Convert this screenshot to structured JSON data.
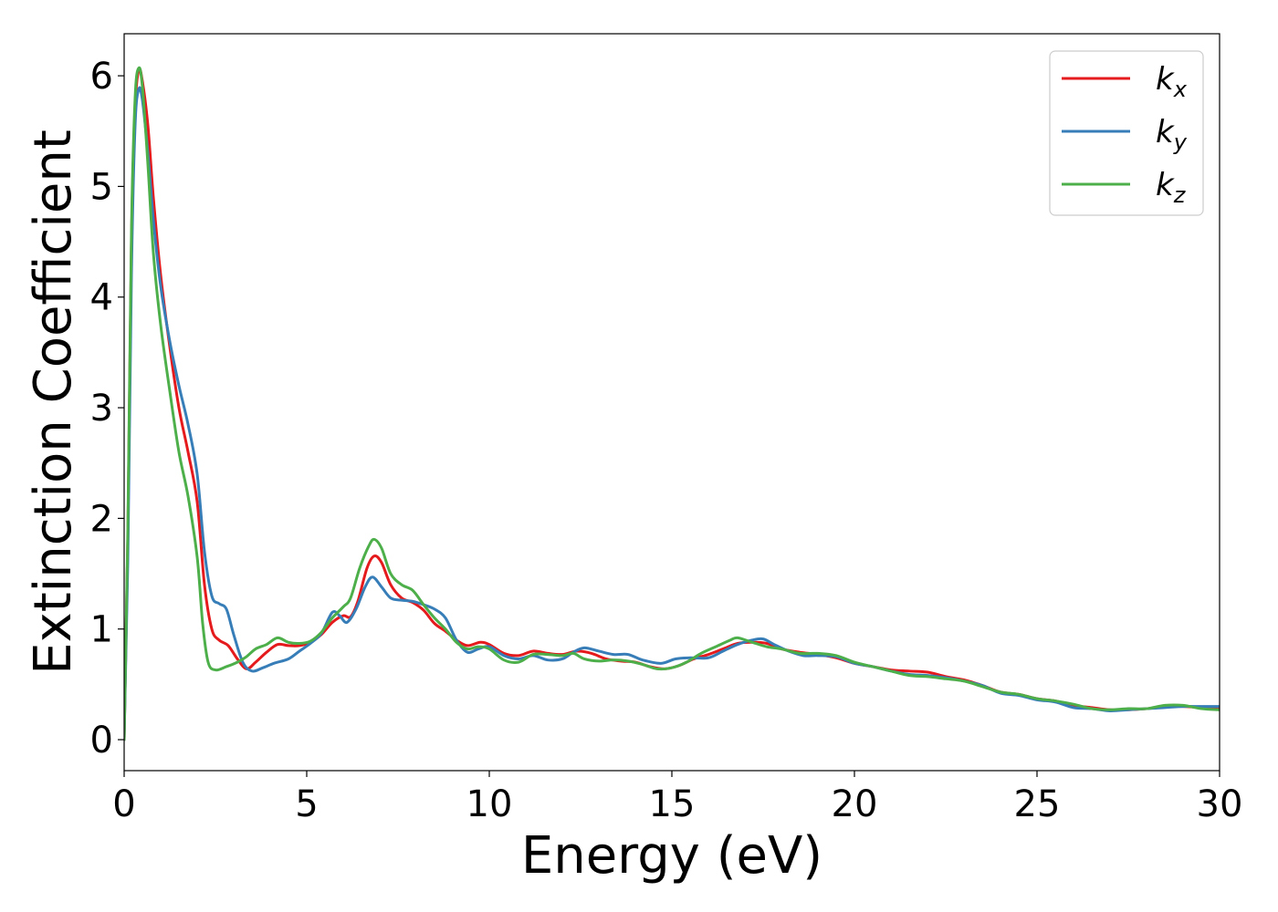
{
  "chart_data": {
    "type": "line",
    "title": "",
    "xlabel": "Energy (eV)",
    "ylabel": "Extinction Coefficient",
    "xlim": [
      0,
      30
    ],
    "ylim": [
      -0.28,
      6.38
    ],
    "xticks": [
      0,
      5,
      10,
      15,
      20,
      25,
      30
    ],
    "xtick_labels": [
      "0",
      "5",
      "10",
      "15",
      "20",
      "25",
      "30"
    ],
    "yticks": [
      0,
      1,
      2,
      3,
      4,
      5,
      6
    ],
    "ytick_labels": [
      "0",
      "1",
      "2",
      "3",
      "4",
      "5",
      "6"
    ],
    "grid": false,
    "legend_position": "top-right",
    "series": [
      {
        "name": "k_x",
        "legend_base": "k",
        "legend_sub": "x",
        "color": "#e41a1c",
        "points": [
          [
            0,
            0
          ],
          [
            0.1,
            1.8
          ],
          [
            0.2,
            4.5
          ],
          [
            0.3,
            5.7
          ],
          [
            0.4,
            6.05
          ],
          [
            0.5,
            5.95
          ],
          [
            0.65,
            5.55
          ],
          [
            0.8,
            4.9
          ],
          [
            1.0,
            4.2
          ],
          [
            1.25,
            3.55
          ],
          [
            1.5,
            3.0
          ],
          [
            1.75,
            2.6
          ],
          [
            2.0,
            2.15
          ],
          [
            2.2,
            1.4
          ],
          [
            2.4,
            1.0
          ],
          [
            2.6,
            0.9
          ],
          [
            2.85,
            0.85
          ],
          [
            3.1,
            0.73
          ],
          [
            3.35,
            0.64
          ],
          [
            3.6,
            0.7
          ],
          [
            3.9,
            0.79
          ],
          [
            4.2,
            0.86
          ],
          [
            4.5,
            0.85
          ],
          [
            4.8,
            0.85
          ],
          [
            5.1,
            0.88
          ],
          [
            5.4,
            0.95
          ],
          [
            5.7,
            1.06
          ],
          [
            6.0,
            1.12
          ],
          [
            6.2,
            1.11
          ],
          [
            6.4,
            1.25
          ],
          [
            6.65,
            1.55
          ],
          [
            6.85,
            1.66
          ],
          [
            7.05,
            1.6
          ],
          [
            7.3,
            1.4
          ],
          [
            7.6,
            1.28
          ],
          [
            7.9,
            1.24
          ],
          [
            8.2,
            1.17
          ],
          [
            8.5,
            1.05
          ],
          [
            8.8,
            0.98
          ],
          [
            9.1,
            0.9
          ],
          [
            9.4,
            0.85
          ],
          [
            9.75,
            0.88
          ],
          [
            10.0,
            0.86
          ],
          [
            10.4,
            0.78
          ],
          [
            10.8,
            0.76
          ],
          [
            11.2,
            0.8
          ],
          [
            11.6,
            0.78
          ],
          [
            12.0,
            0.77
          ],
          [
            12.4,
            0.8
          ],
          [
            12.8,
            0.78
          ],
          [
            13.2,
            0.73
          ],
          [
            13.6,
            0.71
          ],
          [
            14.0,
            0.7
          ],
          [
            14.4,
            0.66
          ],
          [
            14.8,
            0.64
          ],
          [
            15.2,
            0.67
          ],
          [
            15.6,
            0.73
          ],
          [
            16.0,
            0.77
          ],
          [
            16.4,
            0.82
          ],
          [
            16.8,
            0.87
          ],
          [
            17.2,
            0.88
          ],
          [
            17.6,
            0.87
          ],
          [
            18.0,
            0.82
          ],
          [
            18.5,
            0.79
          ],
          [
            19.0,
            0.77
          ],
          [
            19.5,
            0.74
          ],
          [
            20.0,
            0.69
          ],
          [
            20.5,
            0.66
          ],
          [
            21.0,
            0.63
          ],
          [
            21.5,
            0.62
          ],
          [
            22.0,
            0.61
          ],
          [
            22.5,
            0.57
          ],
          [
            23.0,
            0.54
          ],
          [
            23.5,
            0.49
          ],
          [
            24.0,
            0.43
          ],
          [
            24.5,
            0.41
          ],
          [
            25.0,
            0.37
          ],
          [
            25.5,
            0.35
          ],
          [
            26.0,
            0.31
          ],
          [
            26.5,
            0.29
          ],
          [
            27.0,
            0.27
          ],
          [
            27.5,
            0.27
          ],
          [
            28.0,
            0.28
          ],
          [
            28.5,
            0.3
          ],
          [
            29.0,
            0.3
          ],
          [
            29.5,
            0.29
          ],
          [
            30.0,
            0.28
          ]
        ]
      },
      {
        "name": "k_y",
        "legend_base": "k",
        "legend_sub": "y",
        "color": "#377eb8",
        "points": [
          [
            0,
            0
          ],
          [
            0.1,
            1.6
          ],
          [
            0.2,
            4.2
          ],
          [
            0.3,
            5.55
          ],
          [
            0.4,
            5.88
          ],
          [
            0.5,
            5.78
          ],
          [
            0.65,
            5.3
          ],
          [
            0.8,
            4.7
          ],
          [
            1.0,
            4.1
          ],
          [
            1.25,
            3.6
          ],
          [
            1.5,
            3.2
          ],
          [
            1.75,
            2.85
          ],
          [
            2.0,
            2.4
          ],
          [
            2.2,
            1.7
          ],
          [
            2.4,
            1.3
          ],
          [
            2.6,
            1.23
          ],
          [
            2.8,
            1.18
          ],
          [
            3.0,
            0.95
          ],
          [
            3.25,
            0.7
          ],
          [
            3.5,
            0.62
          ],
          [
            3.8,
            0.65
          ],
          [
            4.1,
            0.69
          ],
          [
            4.5,
            0.73
          ],
          [
            4.8,
            0.8
          ],
          [
            5.1,
            0.87
          ],
          [
            5.4,
            0.96
          ],
          [
            5.7,
            1.15
          ],
          [
            5.9,
            1.12
          ],
          [
            6.1,
            1.06
          ],
          [
            6.35,
            1.18
          ],
          [
            6.6,
            1.38
          ],
          [
            6.8,
            1.47
          ],
          [
            7.05,
            1.38
          ],
          [
            7.3,
            1.28
          ],
          [
            7.6,
            1.26
          ],
          [
            7.9,
            1.25
          ],
          [
            8.2,
            1.22
          ],
          [
            8.5,
            1.18
          ],
          [
            8.8,
            1.1
          ],
          [
            9.1,
            0.9
          ],
          [
            9.4,
            0.79
          ],
          [
            9.7,
            0.82
          ],
          [
            10.0,
            0.84
          ],
          [
            10.4,
            0.76
          ],
          [
            10.8,
            0.73
          ],
          [
            11.2,
            0.76
          ],
          [
            11.6,
            0.72
          ],
          [
            12.0,
            0.73
          ],
          [
            12.3,
            0.79
          ],
          [
            12.6,
            0.83
          ],
          [
            13.0,
            0.8
          ],
          [
            13.4,
            0.77
          ],
          [
            13.8,
            0.77
          ],
          [
            14.2,
            0.72
          ],
          [
            14.7,
            0.69
          ],
          [
            15.1,
            0.73
          ],
          [
            15.5,
            0.74
          ],
          [
            16.0,
            0.74
          ],
          [
            16.4,
            0.8
          ],
          [
            16.8,
            0.86
          ],
          [
            17.2,
            0.9
          ],
          [
            17.5,
            0.91
          ],
          [
            17.8,
            0.86
          ],
          [
            18.2,
            0.8
          ],
          [
            18.6,
            0.76
          ],
          [
            19.0,
            0.76
          ],
          [
            19.5,
            0.75
          ],
          [
            20.0,
            0.69
          ],
          [
            20.5,
            0.66
          ],
          [
            21.0,
            0.62
          ],
          [
            21.5,
            0.59
          ],
          [
            22.0,
            0.58
          ],
          [
            22.5,
            0.56
          ],
          [
            23.0,
            0.53
          ],
          [
            23.5,
            0.49
          ],
          [
            24.0,
            0.42
          ],
          [
            24.5,
            0.4
          ],
          [
            25.0,
            0.36
          ],
          [
            25.5,
            0.34
          ],
          [
            26.0,
            0.29
          ],
          [
            26.5,
            0.28
          ],
          [
            27.0,
            0.26
          ],
          [
            27.5,
            0.27
          ],
          [
            28.0,
            0.28
          ],
          [
            28.5,
            0.29
          ],
          [
            29.0,
            0.3
          ],
          [
            29.5,
            0.3
          ],
          [
            30.0,
            0.3
          ]
        ]
      },
      {
        "name": "k_z",
        "legend_base": "k",
        "legend_sub": "z",
        "color": "#4daf4a",
        "points": [
          [
            0,
            0
          ],
          [
            0.1,
            1.9
          ],
          [
            0.2,
            4.6
          ],
          [
            0.3,
            5.8
          ],
          [
            0.4,
            6.07
          ],
          [
            0.5,
            5.9
          ],
          [
            0.65,
            5.2
          ],
          [
            0.8,
            4.4
          ],
          [
            1.0,
            3.75
          ],
          [
            1.25,
            3.15
          ],
          [
            1.5,
            2.6
          ],
          [
            1.75,
            2.2
          ],
          [
            2.0,
            1.65
          ],
          [
            2.15,
            1.05
          ],
          [
            2.3,
            0.7
          ],
          [
            2.5,
            0.63
          ],
          [
            2.8,
            0.66
          ],
          [
            3.1,
            0.7
          ],
          [
            3.35,
            0.75
          ],
          [
            3.6,
            0.82
          ],
          [
            3.9,
            0.86
          ],
          [
            4.2,
            0.92
          ],
          [
            4.5,
            0.88
          ],
          [
            4.8,
            0.87
          ],
          [
            5.1,
            0.89
          ],
          [
            5.4,
            0.97
          ],
          [
            5.7,
            1.1
          ],
          [
            6.0,
            1.2
          ],
          [
            6.2,
            1.28
          ],
          [
            6.45,
            1.55
          ],
          [
            6.7,
            1.75
          ],
          [
            6.85,
            1.81
          ],
          [
            7.05,
            1.73
          ],
          [
            7.3,
            1.5
          ],
          [
            7.6,
            1.4
          ],
          [
            7.9,
            1.35
          ],
          [
            8.2,
            1.22
          ],
          [
            8.5,
            1.1
          ],
          [
            8.8,
            1.0
          ],
          [
            9.1,
            0.88
          ],
          [
            9.4,
            0.82
          ],
          [
            9.7,
            0.84
          ],
          [
            10.0,
            0.82
          ],
          [
            10.4,
            0.72
          ],
          [
            10.8,
            0.7
          ],
          [
            11.2,
            0.77
          ],
          [
            11.6,
            0.77
          ],
          [
            12.0,
            0.76
          ],
          [
            12.3,
            0.78
          ],
          [
            12.6,
            0.73
          ],
          [
            13.0,
            0.71
          ],
          [
            13.4,
            0.72
          ],
          [
            13.8,
            0.71
          ],
          [
            14.2,
            0.68
          ],
          [
            14.6,
            0.64
          ],
          [
            15.0,
            0.65
          ],
          [
            15.4,
            0.7
          ],
          [
            15.8,
            0.78
          ],
          [
            16.2,
            0.84
          ],
          [
            16.6,
            0.9
          ],
          [
            16.8,
            0.92
          ],
          [
            17.2,
            0.88
          ],
          [
            17.6,
            0.84
          ],
          [
            18.0,
            0.82
          ],
          [
            18.5,
            0.78
          ],
          [
            19.0,
            0.78
          ],
          [
            19.5,
            0.76
          ],
          [
            20.0,
            0.7
          ],
          [
            20.5,
            0.66
          ],
          [
            21.0,
            0.62
          ],
          [
            21.5,
            0.58
          ],
          [
            22.0,
            0.57
          ],
          [
            22.5,
            0.55
          ],
          [
            23.0,
            0.53
          ],
          [
            23.5,
            0.48
          ],
          [
            24.0,
            0.43
          ],
          [
            24.5,
            0.41
          ],
          [
            25.0,
            0.37
          ],
          [
            25.5,
            0.35
          ],
          [
            26.0,
            0.32
          ],
          [
            26.5,
            0.28
          ],
          [
            27.0,
            0.27
          ],
          [
            27.5,
            0.28
          ],
          [
            28.0,
            0.28
          ],
          [
            28.5,
            0.31
          ],
          [
            29.0,
            0.31
          ],
          [
            29.5,
            0.28
          ],
          [
            30.0,
            0.27
          ]
        ]
      }
    ]
  }
}
